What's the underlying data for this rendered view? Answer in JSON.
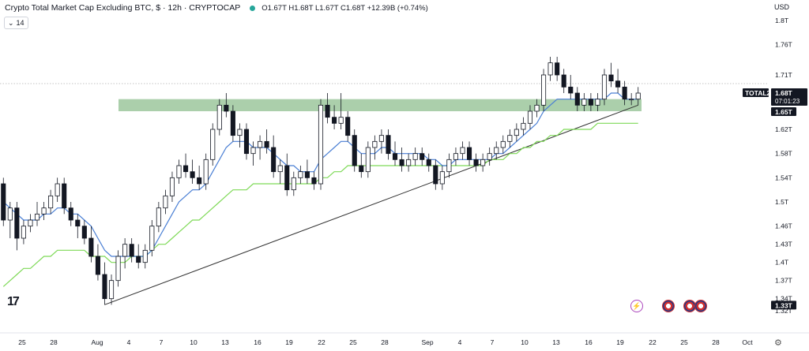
{
  "header": {
    "title": "Crypto Total Market Cap Excluding BTC, $ · 12h · CRYPTOCAP",
    "ohlc": "O1.67T H1.68T L1.67T C1.68T +12.39B (+0.74%)"
  },
  "interval_label": "14",
  "currency": "USD",
  "price_tags": {
    "symbol": "TOTAL2",
    "last_price": "1.68T",
    "countdown": "07:01:23",
    "zone_price": "1.65T",
    "low_price": "1.33T"
  },
  "colors": {
    "up": "#131722",
    "down": "#131722",
    "ema_fast": "#4a7fd4",
    "ema_slow": "#7ed957",
    "zone": "#8fbf8f",
    "trendline": "#333333"
  },
  "icons": [
    "tradingview-logo",
    "lightning-icon",
    "us-flag-icon",
    "us-flag-icon",
    "us-flag-icon",
    "gear-icon"
  ],
  "chart_data": {
    "type": "candlestick",
    "title": "Crypto Total Market Cap Excluding BTC, $ · 12h · CRYPTOCAP",
    "ylim": [
      1.3,
      1.82
    ],
    "y_ticks": [
      "1.8T",
      "1.76T",
      "1.71T",
      "1.68T",
      "1.65T",
      "1.62T",
      "1.58T",
      "1.54T",
      "1.5T",
      "1.46T",
      "1.43T",
      "1.4T",
      "1.37T",
      "1.34T",
      "1.33T",
      "1.32T"
    ],
    "x_ticks": [
      "25",
      "28",
      "Aug",
      "4",
      "7",
      "10",
      "13",
      "16",
      "19",
      "22",
      "25",
      "28",
      "Sep",
      "4",
      "7",
      "10",
      "13",
      "16",
      "19",
      "22",
      "25",
      "28",
      "Oct"
    ],
    "ohlc": [
      [
        1.53,
        1.54,
        1.46,
        1.47
      ],
      [
        1.47,
        1.5,
        1.44,
        1.49
      ],
      [
        1.49,
        1.5,
        1.42,
        1.44
      ],
      [
        1.44,
        1.47,
        1.43,
        1.46
      ],
      [
        1.46,
        1.48,
        1.45,
        1.47
      ],
      [
        1.47,
        1.5,
        1.46,
        1.48
      ],
      [
        1.48,
        1.5,
        1.47,
        1.49
      ],
      [
        1.49,
        1.52,
        1.48,
        1.51
      ],
      [
        1.51,
        1.54,
        1.5,
        1.53
      ],
      [
        1.53,
        1.54,
        1.48,
        1.49
      ],
      [
        1.49,
        1.5,
        1.46,
        1.47
      ],
      [
        1.47,
        1.48,
        1.44,
        1.46
      ],
      [
        1.46,
        1.47,
        1.43,
        1.44
      ],
      [
        1.44,
        1.46,
        1.4,
        1.41
      ],
      [
        1.41,
        1.43,
        1.37,
        1.38
      ],
      [
        1.38,
        1.4,
        1.33,
        1.34
      ],
      [
        1.34,
        1.38,
        1.33,
        1.37
      ],
      [
        1.37,
        1.42,
        1.36,
        1.41
      ],
      [
        1.41,
        1.44,
        1.39,
        1.43
      ],
      [
        1.43,
        1.44,
        1.4,
        1.41
      ],
      [
        1.41,
        1.43,
        1.39,
        1.4
      ],
      [
        1.4,
        1.43,
        1.39,
        1.42
      ],
      [
        1.42,
        1.47,
        1.41,
        1.46
      ],
      [
        1.46,
        1.5,
        1.45,
        1.49
      ],
      [
        1.49,
        1.52,
        1.48,
        1.51
      ],
      [
        1.51,
        1.55,
        1.5,
        1.54
      ],
      [
        1.54,
        1.57,
        1.53,
        1.56
      ],
      [
        1.56,
        1.58,
        1.54,
        1.55
      ],
      [
        1.55,
        1.57,
        1.53,
        1.54
      ],
      [
        1.54,
        1.56,
        1.52,
        1.53
      ],
      [
        1.53,
        1.58,
        1.52,
        1.57
      ],
      [
        1.57,
        1.63,
        1.56,
        1.62
      ],
      [
        1.62,
        1.67,
        1.61,
        1.66
      ],
      [
        1.66,
        1.68,
        1.64,
        1.65
      ],
      [
        1.65,
        1.66,
        1.6,
        1.61
      ],
      [
        1.61,
        1.63,
        1.59,
        1.62
      ],
      [
        1.62,
        1.63,
        1.57,
        1.58
      ],
      [
        1.58,
        1.6,
        1.56,
        1.59
      ],
      [
        1.59,
        1.61,
        1.57,
        1.6
      ],
      [
        1.6,
        1.62,
        1.58,
        1.59
      ],
      [
        1.59,
        1.61,
        1.54,
        1.55
      ],
      [
        1.55,
        1.57,
        1.53,
        1.56
      ],
      [
        1.56,
        1.58,
        1.51,
        1.52
      ],
      [
        1.52,
        1.55,
        1.51,
        1.54
      ],
      [
        1.54,
        1.56,
        1.53,
        1.55
      ],
      [
        1.55,
        1.57,
        1.53,
        1.54
      ],
      [
        1.54,
        1.55,
        1.52,
        1.53
      ],
      [
        1.53,
        1.67,
        1.52,
        1.66
      ],
      [
        1.66,
        1.68,
        1.63,
        1.64
      ],
      [
        1.64,
        1.66,
        1.62,
        1.63
      ],
      [
        1.63,
        1.68,
        1.62,
        1.64
      ],
      [
        1.64,
        1.65,
        1.6,
        1.61
      ],
      [
        1.61,
        1.62,
        1.55,
        1.56
      ],
      [
        1.56,
        1.58,
        1.54,
        1.55
      ],
      [
        1.55,
        1.6,
        1.54,
        1.59
      ],
      [
        1.59,
        1.61,
        1.57,
        1.6
      ],
      [
        1.6,
        1.62,
        1.58,
        1.61
      ],
      [
        1.61,
        1.62,
        1.57,
        1.58
      ],
      [
        1.58,
        1.6,
        1.56,
        1.57
      ],
      [
        1.57,
        1.59,
        1.55,
        1.56
      ],
      [
        1.56,
        1.58,
        1.55,
        1.57
      ],
      [
        1.57,
        1.59,
        1.56,
        1.58
      ],
      [
        1.58,
        1.59,
        1.56,
        1.57
      ],
      [
        1.57,
        1.58,
        1.55,
        1.56
      ],
      [
        1.56,
        1.57,
        1.52,
        1.53
      ],
      [
        1.53,
        1.56,
        1.52,
        1.55
      ],
      [
        1.55,
        1.58,
        1.54,
        1.57
      ],
      [
        1.57,
        1.59,
        1.56,
        1.58
      ],
      [
        1.58,
        1.6,
        1.57,
        1.59
      ],
      [
        1.59,
        1.6,
        1.56,
        1.57
      ],
      [
        1.57,
        1.58,
        1.55,
        1.56
      ],
      [
        1.56,
        1.58,
        1.55,
        1.57
      ],
      [
        1.57,
        1.59,
        1.56,
        1.58
      ],
      [
        1.58,
        1.6,
        1.57,
        1.59
      ],
      [
        1.59,
        1.61,
        1.58,
        1.6
      ],
      [
        1.6,
        1.62,
        1.59,
        1.61
      ],
      [
        1.61,
        1.63,
        1.6,
        1.62
      ],
      [
        1.62,
        1.64,
        1.61,
        1.63
      ],
      [
        1.63,
        1.66,
        1.62,
        1.65
      ],
      [
        1.65,
        1.67,
        1.64,
        1.66
      ],
      [
        1.66,
        1.72,
        1.65,
        1.71
      ],
      [
        1.71,
        1.74,
        1.7,
        1.73
      ],
      [
        1.73,
        1.74,
        1.7,
        1.71
      ],
      [
        1.71,
        1.72,
        1.68,
        1.69
      ],
      [
        1.69,
        1.71,
        1.67,
        1.68
      ],
      [
        1.68,
        1.69,
        1.65,
        1.66
      ],
      [
        1.66,
        1.68,
        1.65,
        1.67
      ],
      [
        1.67,
        1.68,
        1.65,
        1.66
      ],
      [
        1.66,
        1.68,
        1.65,
        1.67
      ],
      [
        1.67,
        1.72,
        1.66,
        1.71
      ],
      [
        1.71,
        1.73,
        1.69,
        1.7
      ],
      [
        1.7,
        1.72,
        1.68,
        1.69
      ],
      [
        1.69,
        1.7,
        1.66,
        1.67
      ],
      [
        1.67,
        1.68,
        1.66,
        1.67
      ],
      [
        1.67,
        1.69,
        1.66,
        1.68
      ]
    ],
    "ema_fast": [
      1.5,
      1.49,
      1.48,
      1.47,
      1.47,
      1.47,
      1.48,
      1.48,
      1.49,
      1.49,
      1.48,
      1.48,
      1.47,
      1.46,
      1.44,
      1.42,
      1.41,
      1.41,
      1.41,
      1.41,
      1.41,
      1.41,
      1.42,
      1.44,
      1.46,
      1.48,
      1.5,
      1.51,
      1.52,
      1.52,
      1.53,
      1.55,
      1.57,
      1.59,
      1.6,
      1.6,
      1.6,
      1.59,
      1.59,
      1.59,
      1.58,
      1.57,
      1.56,
      1.56,
      1.55,
      1.55,
      1.55,
      1.57,
      1.58,
      1.59,
      1.6,
      1.6,
      1.59,
      1.58,
      1.58,
      1.58,
      1.59,
      1.59,
      1.58,
      1.58,
      1.58,
      1.58,
      1.58,
      1.57,
      1.57,
      1.56,
      1.56,
      1.57,
      1.57,
      1.57,
      1.57,
      1.57,
      1.57,
      1.58,
      1.58,
      1.59,
      1.6,
      1.61,
      1.62,
      1.63,
      1.65,
      1.66,
      1.67,
      1.67,
      1.67,
      1.67,
      1.67,
      1.67,
      1.67,
      1.67,
      1.68,
      1.68,
      1.67,
      1.67,
      1.67
    ],
    "ema_slow": [
      1.36,
      1.37,
      1.38,
      1.39,
      1.39,
      1.4,
      1.41,
      1.41,
      1.42,
      1.42,
      1.42,
      1.42,
      1.42,
      1.41,
      1.41,
      1.41,
      1.4,
      1.4,
      1.4,
      1.41,
      1.41,
      1.41,
      1.42,
      1.43,
      1.43,
      1.44,
      1.45,
      1.46,
      1.47,
      1.47,
      1.48,
      1.49,
      1.5,
      1.51,
      1.52,
      1.52,
      1.52,
      1.53,
      1.53,
      1.53,
      1.53,
      1.53,
      1.53,
      1.53,
      1.53,
      1.53,
      1.53,
      1.54,
      1.54,
      1.55,
      1.55,
      1.56,
      1.56,
      1.56,
      1.56,
      1.56,
      1.56,
      1.56,
      1.56,
      1.56,
      1.56,
      1.56,
      1.56,
      1.56,
      1.56,
      1.56,
      1.56,
      1.56,
      1.56,
      1.56,
      1.56,
      1.56,
      1.57,
      1.57,
      1.57,
      1.58,
      1.58,
      1.59,
      1.59,
      1.6,
      1.6,
      1.61,
      1.61,
      1.62,
      1.62,
      1.62,
      1.62,
      1.62,
      1.63,
      1.63,
      1.63,
      1.63,
      1.63,
      1.63,
      1.63
    ],
    "resistance_zone": [
      1.65,
      1.67
    ],
    "trendline": [
      [
        15,
        1.33
      ],
      [
        94,
        1.66
      ]
    ]
  }
}
